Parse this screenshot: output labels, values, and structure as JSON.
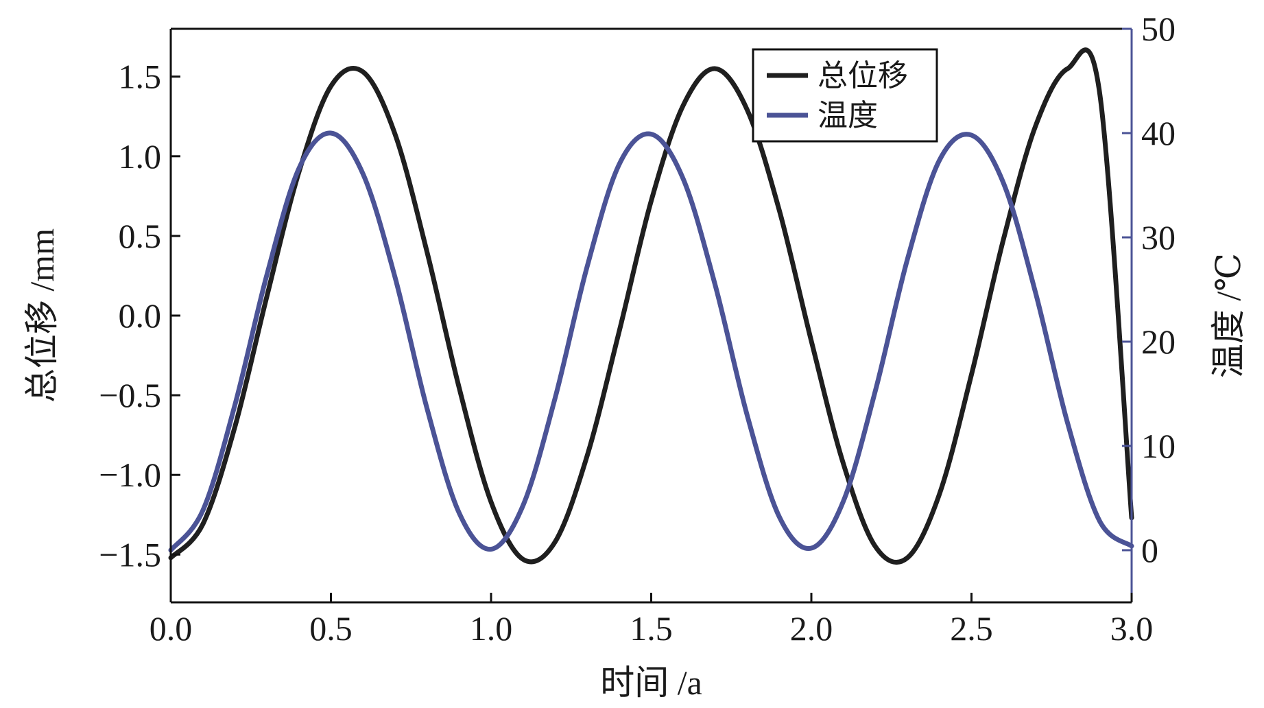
{
  "chart_data": {
    "type": "line",
    "title": "",
    "xlabel": "时间 /a",
    "ylabel_left": "总位移 /mm",
    "ylabel_right": "温度 /℃",
    "xlim": [
      0.0,
      3.0
    ],
    "ylim_left": [
      -1.8,
      1.8
    ],
    "ylim_right": [
      -5,
      50
    ],
    "x_ticks": [
      "0.0",
      "0.5",
      "1.0",
      "1.5",
      "2.0",
      "2.5",
      "3.0"
    ],
    "y_left_ticks": [
      "1.5",
      "1.0",
      "0.5",
      "0.0",
      "−0.5",
      "−1.0",
      "−1.5"
    ],
    "y_right_ticks": [
      "50",
      "40",
      "30",
      "20",
      "10",
      "0"
    ],
    "grid": false,
    "legend_position": "top-right",
    "series": [
      {
        "name": "总位移",
        "axis": "left",
        "color": "#1f1f1f",
        "x": [
          0.0,
          0.1,
          0.2,
          0.3,
          0.4,
          0.5,
          0.6,
          0.7,
          0.8,
          0.9,
          1.0,
          1.1,
          1.2,
          1.3,
          1.4,
          1.5,
          1.6,
          1.7,
          1.8,
          1.9,
          2.0,
          2.1,
          2.2,
          2.3,
          2.4,
          2.5,
          2.6,
          2.7,
          2.8,
          2.9,
          3.0
        ],
        "values": [
          -1.52,
          -1.31,
          -0.7,
          0.12,
          0.9,
          1.44,
          1.53,
          1.14,
          0.4,
          -0.45,
          -1.17,
          -1.53,
          -1.42,
          -0.88,
          -0.1,
          0.72,
          1.32,
          1.55,
          1.29,
          0.66,
          -0.16,
          -0.93,
          -1.45,
          -1.52,
          -1.12,
          -0.37,
          0.48,
          1.19,
          1.55,
          1.4,
          -1.27
        ]
      },
      {
        "name": "温度",
        "axis": "right",
        "color": "#4b5396",
        "x": [
          0.0,
          0.1,
          0.2,
          0.3,
          0.4,
          0.5,
          0.6,
          0.7,
          0.8,
          0.9,
          1.0,
          1.1,
          1.2,
          1.3,
          1.4,
          1.5,
          1.6,
          1.7,
          1.8,
          1.9,
          2.0,
          2.1,
          2.2,
          2.3,
          2.4,
          2.5,
          2.6,
          2.7,
          2.8,
          2.9,
          3.0
        ],
        "values": [
          0.0,
          3.8,
          13.9,
          26.4,
          36.6,
          40.0,
          36.1,
          26.2,
          13.6,
          3.6,
          0.1,
          4.3,
          14.6,
          27.2,
          37.0,
          39.9,
          35.6,
          25.4,
          12.9,
          3.2,
          0.2,
          4.7,
          15.3,
          27.9,
          37.4,
          39.8,
          35.2,
          24.7,
          12.2,
          2.8,
          0.4
        ]
      }
    ]
  }
}
